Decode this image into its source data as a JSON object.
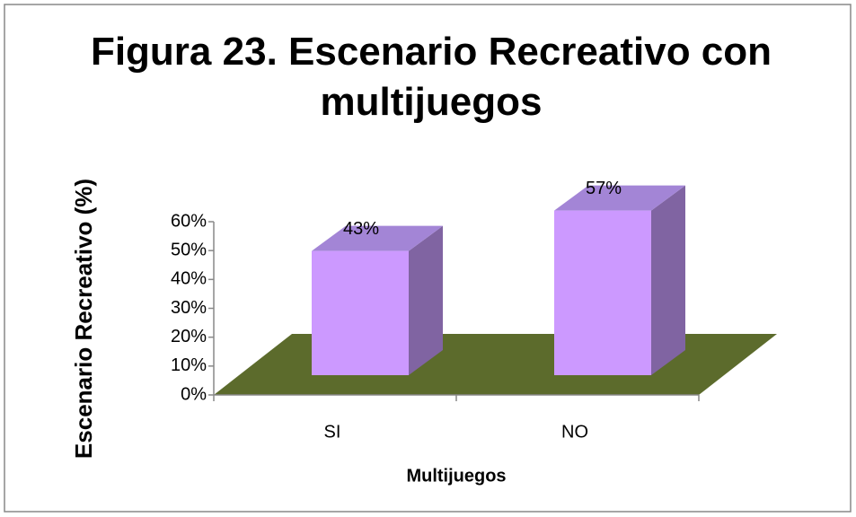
{
  "chart_data": {
    "type": "bar3d",
    "title": "Figura 23. Escenario Recreativo con multijuegos",
    "x_label": "Multijuegos",
    "y_label": "Escenario Recreativo (%)",
    "categories": [
      "SI",
      "NO"
    ],
    "values": [
      43,
      57
    ],
    "value_labels": [
      "43%",
      "57%"
    ],
    "color": "#cc99ff",
    "floor_color": "#5c6b2c",
    "ylim": [
      0,
      60
    ],
    "yticks": [
      {
        "value": 0,
        "label": "0%"
      },
      {
        "value": 10,
        "label": "10%"
      },
      {
        "value": 20,
        "label": "20%"
      },
      {
        "value": 30,
        "label": "30%"
      },
      {
        "value": 40,
        "label": "40%"
      },
      {
        "value": 50,
        "label": "50%"
      },
      {
        "value": 60,
        "label": "60%"
      }
    ],
    "grid": false
  }
}
